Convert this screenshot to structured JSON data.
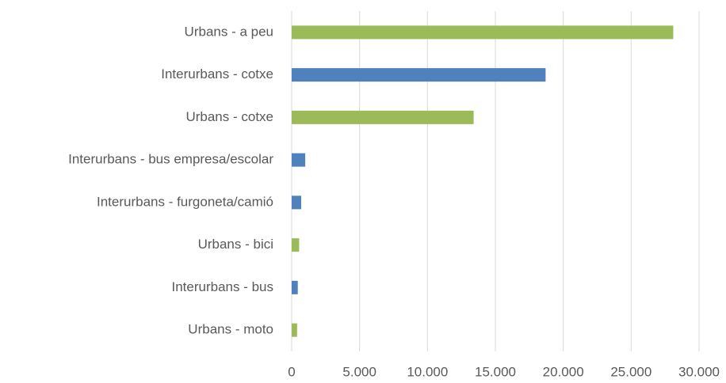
{
  "chart_data": {
    "type": "bar",
    "orientation": "horizontal",
    "categories": [
      "Urbans - a peu",
      "Interurbans - cotxe",
      "Urbans - cotxe",
      "Interurbans - bus empresa/escolar",
      "Interurbans - furgoneta/camió",
      "Urbans - bici",
      "Interurbans - bus",
      "Urbans - moto"
    ],
    "values": [
      28100,
      18700,
      13400,
      1000,
      700,
      550,
      450,
      400
    ],
    "colors": [
      "#9bbb59",
      "#4f81bd",
      "#9bbb59",
      "#4f81bd",
      "#4f81bd",
      "#9bbb59",
      "#4f81bd",
      "#9bbb59"
    ],
    "xlim": [
      0,
      30000
    ],
    "xticks": [
      0,
      {
        "value": 5000,
        "label": "5.000"
      },
      {
        "value": 10000,
        "label": "10.000"
      },
      {
        "value": 15000,
        "label": "15.000"
      },
      {
        "value": 20000,
        "label": "20.000"
      },
      {
        "value": 25000,
        "label": "25.000"
      },
      {
        "value": 30000,
        "label": "30.000"
      }
    ],
    "grid": true
  }
}
